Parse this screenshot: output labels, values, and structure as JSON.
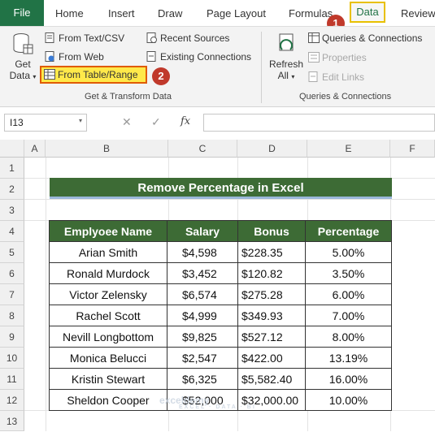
{
  "ribbon_tabs": {
    "file": "File",
    "home": "Home",
    "insert": "Insert",
    "draw": "Draw",
    "page_layout": "Page Layout",
    "formulas": "Formulas",
    "data": "Data",
    "review": "Review"
  },
  "badges": {
    "step1": "1",
    "step2": "2"
  },
  "get_transform": {
    "get_data_line1": "Get",
    "get_data_line2": "Data",
    "from_text_csv": "From Text/CSV",
    "from_web": "From Web",
    "from_table_range": "From Table/Range",
    "recent_sources": "Recent Sources",
    "existing_connections": "Existing Connections",
    "group_label": "Get & Transform Data"
  },
  "queries_connections": {
    "refresh_line1": "Refresh",
    "refresh_line2": "All",
    "queries_and_connections": "Queries & Connections",
    "properties": "Properties",
    "edit_links": "Edit Links",
    "group_label": "Queries & Connections"
  },
  "formula_bar": {
    "name_box": "I13",
    "fx": "fx",
    "formula": ""
  },
  "columns": [
    "A",
    "B",
    "C",
    "D",
    "E",
    "F"
  ],
  "rows": [
    "1",
    "2",
    "3",
    "4",
    "5",
    "6",
    "7",
    "8",
    "9",
    "10",
    "11",
    "12",
    "13"
  ],
  "sheet_title": "Remove Percentage in Excel",
  "table": {
    "headers": [
      "Emplyoee Name",
      "Salary",
      "Bonus",
      "Percentage"
    ],
    "rows": [
      [
        "Arian Smith",
        "$4,598",
        "$228.35",
        "5.00%"
      ],
      [
        "Ronald Murdock",
        "$3,452",
        "$120.82",
        "3.50%"
      ],
      [
        "Victor Zelensky",
        "$6,574",
        "$275.28",
        "6.00%"
      ],
      [
        "Rachel Scott",
        "$4,999",
        "$349.93",
        "7.00%"
      ],
      [
        "Nevill Longbottom",
        "$9,825",
        "$527.12",
        "8.00%"
      ],
      [
        "Monica Belucci",
        "$2,547",
        "$422.00",
        "13.19%"
      ],
      [
        "Kristin Stewart",
        "$6,325",
        "$5,582.40",
        "16.00%"
      ],
      [
        "Sheldon Cooper",
        "$52,000",
        "$32,000.00",
        "10.00%"
      ]
    ]
  },
  "watermark": {
    "brand": "exceldemy",
    "tagline": "EXCEL · DATA · BI"
  },
  "colors": {
    "excel_green": "#217346",
    "header_green": "#3d6b35",
    "highlight_yellow": "#ffe94a",
    "badge_red": "#c0392b"
  }
}
